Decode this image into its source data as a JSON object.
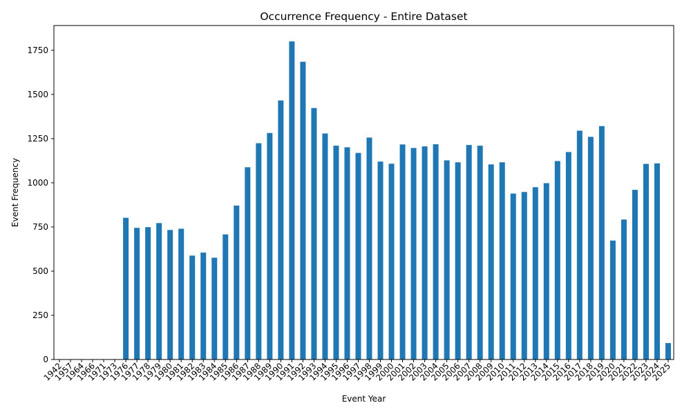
{
  "chart_data": {
    "type": "bar",
    "title": "Occurrence Frequency - Entire Dataset",
    "xlabel": "Event Year",
    "ylabel": "Event Frequency",
    "categories": [
      "1942",
      "1957",
      "1964",
      "1966",
      "1971",
      "1973",
      "1976",
      "1977",
      "1978",
      "1979",
      "1980",
      "1981",
      "1982",
      "1983",
      "1984",
      "1985",
      "1986",
      "1987",
      "1988",
      "1989",
      "1990",
      "1991",
      "1992",
      "1993",
      "1994",
      "1995",
      "1996",
      "1997",
      "1998",
      "1999",
      "2000",
      "2001",
      "2002",
      "2003",
      "2004",
      "2005",
      "2006",
      "2007",
      "2008",
      "2009",
      "2010",
      "2011",
      "2012",
      "2013",
      "2014",
      "2015",
      "2016",
      "2017",
      "2018",
      "2019",
      "2020",
      "2021",
      "2022",
      "2023",
      "2024",
      "2025"
    ],
    "values": [
      1,
      1,
      1,
      1,
      1,
      1,
      802,
      745,
      749,
      772,
      733,
      740,
      588,
      605,
      576,
      708,
      871,
      1088,
      1224,
      1282,
      1466,
      1800,
      1685,
      1423,
      1279,
      1210,
      1201,
      1169,
      1256,
      1120,
      1108,
      1217,
      1197,
      1206,
      1218,
      1127,
      1116,
      1214,
      1210,
      1104,
      1116,
      939,
      948,
      975,
      998,
      1123,
      1174,
      1295,
      1260,
      1321,
      673,
      792,
      960,
      1107,
      1110,
      93
    ],
    "yticks": [
      0,
      250,
      500,
      750,
      1000,
      1250,
      1500,
      1750
    ],
    "ylim": [
      0,
      1890
    ],
    "grid": false,
    "legend": "none",
    "bar_color": "#1f77b4"
  }
}
